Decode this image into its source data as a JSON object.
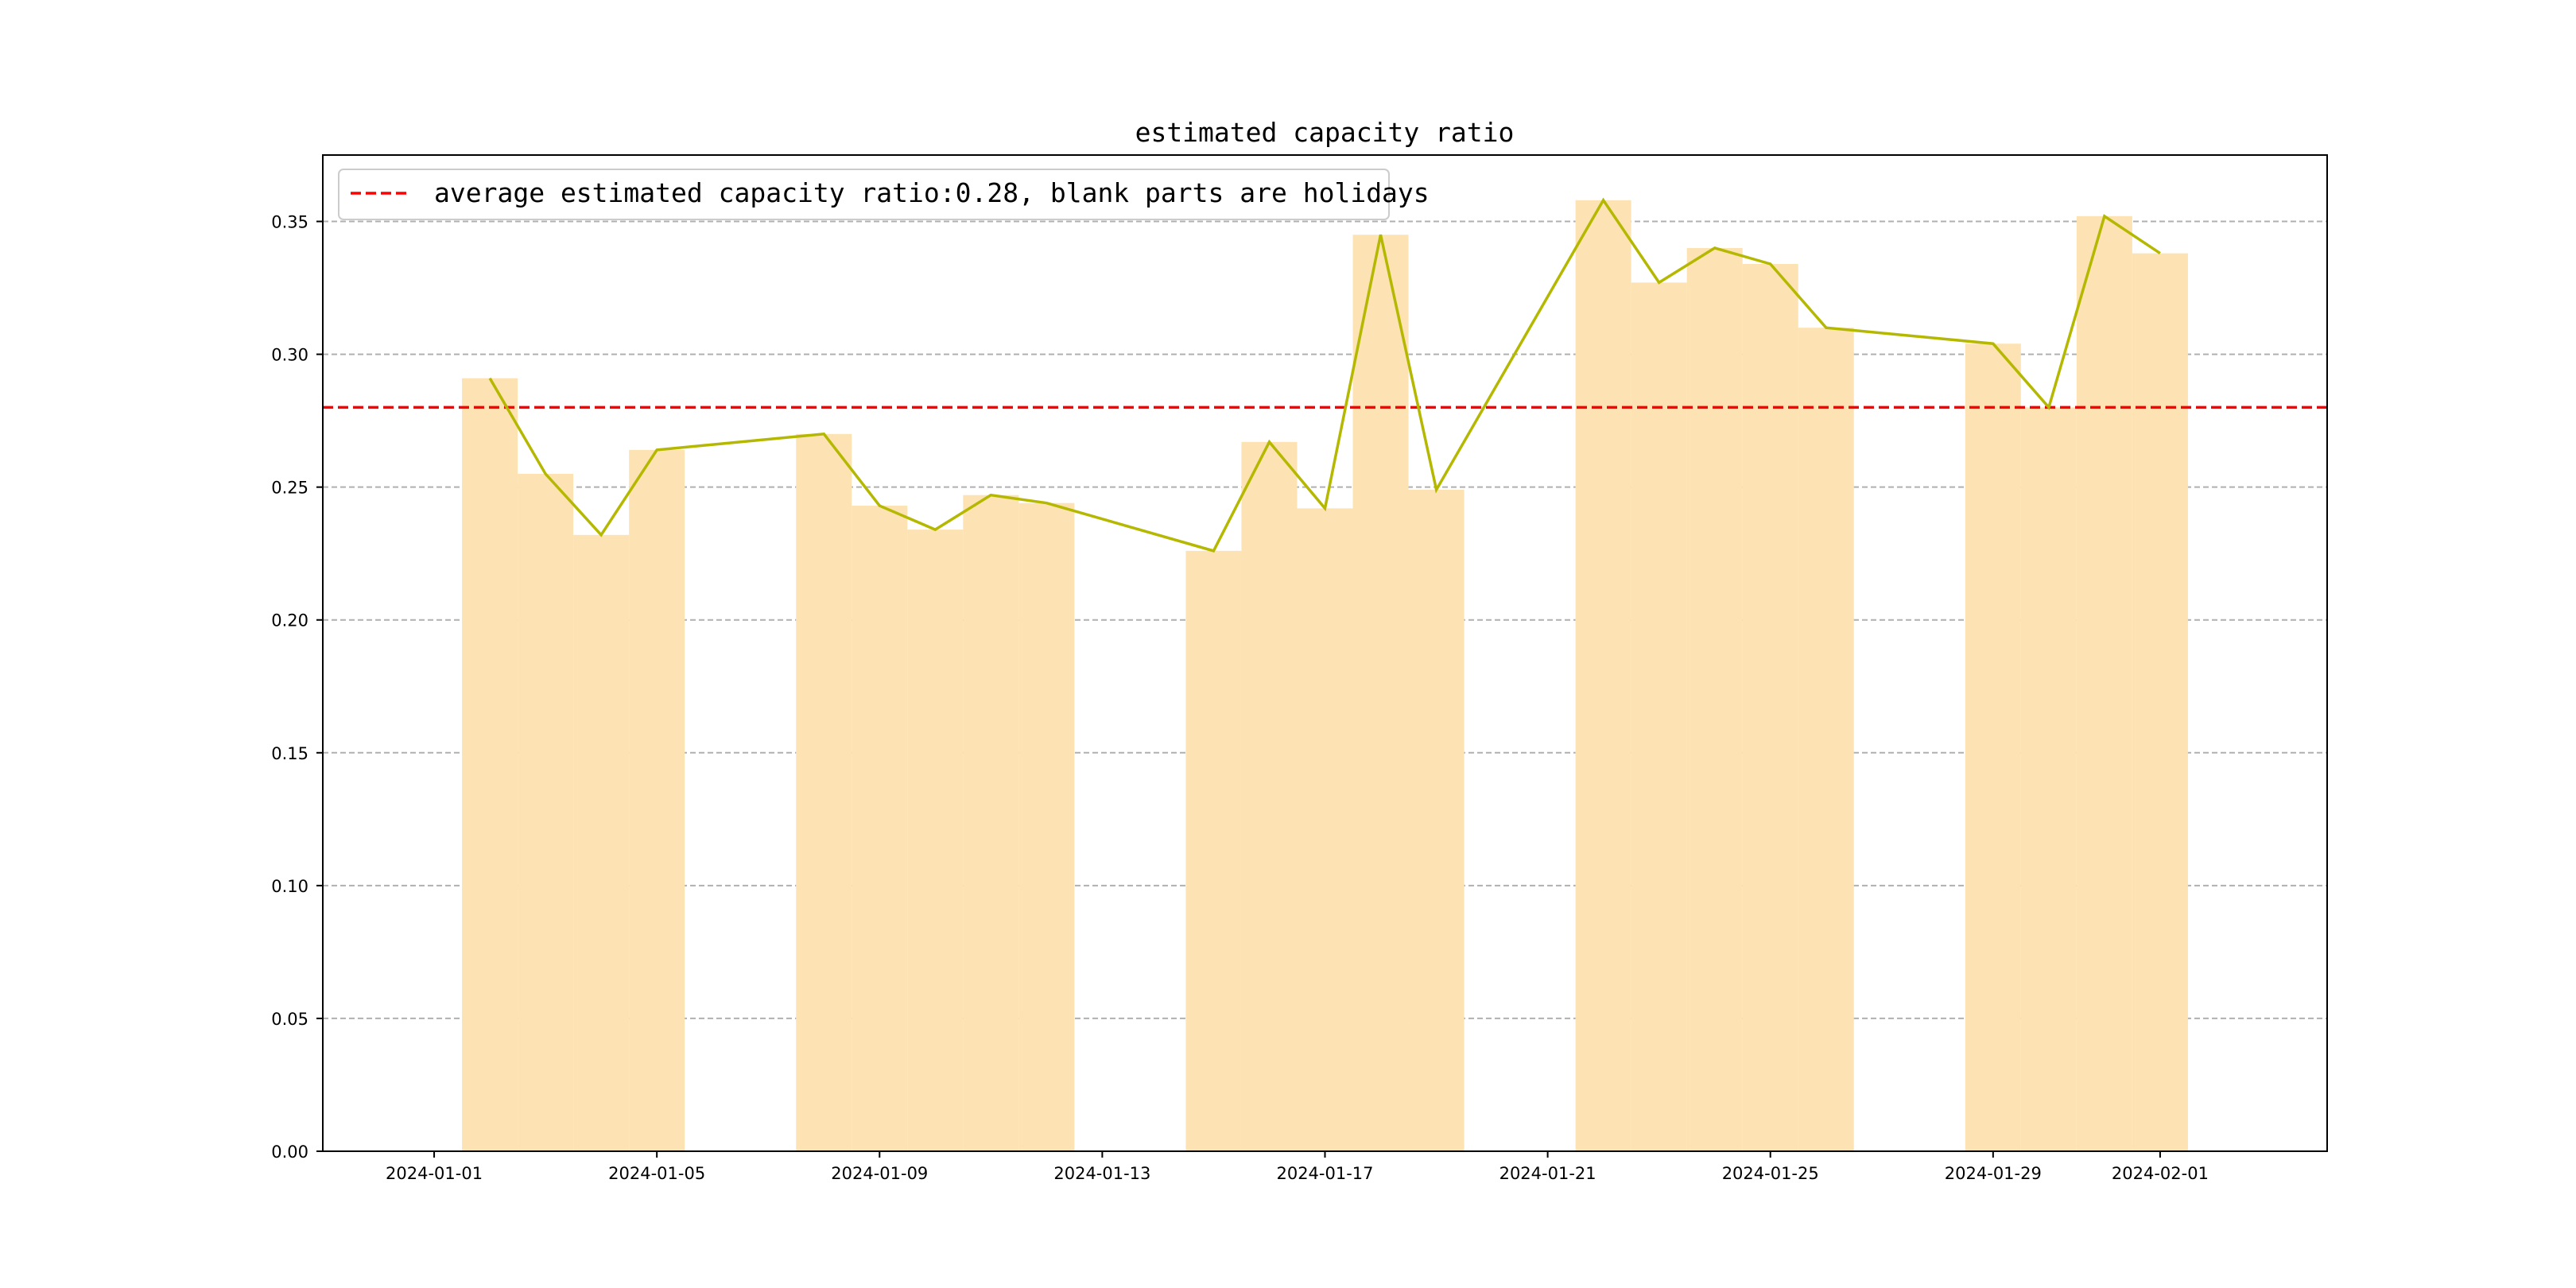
{
  "chart_data": {
    "type": "bar",
    "title": "estimated capacity ratio",
    "xlabel": "",
    "ylabel": "",
    "ylim": [
      0,
      0.375
    ],
    "xlim": [
      "2023-12-30",
      "2024-02-04"
    ],
    "grid": {
      "y": true,
      "x": false,
      "style": "dashed"
    },
    "legend_position": "top-left",
    "colors": {
      "bar": "#fde3b3",
      "line": "#b5b800",
      "average": "#ff0000",
      "grid": "#b0b0b0"
    },
    "x_ticks": [
      "2024-01-01",
      "2024-01-05",
      "2024-01-09",
      "2024-01-13",
      "2024-01-17",
      "2024-01-21",
      "2024-01-25",
      "2024-01-29",
      "2024-02-01"
    ],
    "y_ticks": [
      "0.00",
      "0.05",
      "0.10",
      "0.15",
      "0.20",
      "0.25",
      "0.30",
      "0.35"
    ],
    "dates": [
      "2024-01-02",
      "2024-01-03",
      "2024-01-04",
      "2024-01-05",
      "2024-01-08",
      "2024-01-09",
      "2024-01-10",
      "2024-01-11",
      "2024-01-12",
      "2024-01-15",
      "2024-01-16",
      "2024-01-17",
      "2024-01-18",
      "2024-01-19",
      "2024-01-22",
      "2024-01-23",
      "2024-01-24",
      "2024-01-25",
      "2024-01-26",
      "2024-01-29",
      "2024-01-30",
      "2024-01-31",
      "2024-02-01"
    ],
    "series": [
      {
        "type": "bar",
        "values": [
          0.291,
          0.255,
          0.232,
          0.264,
          0.27,
          0.243,
          0.234,
          0.247,
          0.244,
          0.226,
          0.267,
          0.242,
          0.345,
          0.249,
          0.358,
          0.327,
          0.34,
          0.334,
          0.31,
          0.304,
          0.28,
          0.352,
          0.338
        ]
      },
      {
        "type": "line",
        "values": [
          0.291,
          0.255,
          0.232,
          0.264,
          0.27,
          0.243,
          0.234,
          0.247,
          0.244,
          0.226,
          0.267,
          0.242,
          0.345,
          0.249,
          0.358,
          0.327,
          0.34,
          0.334,
          0.31,
          0.304,
          0.28,
          0.352,
          0.338
        ]
      }
    ],
    "average": {
      "value": 0.28,
      "label": "average estimated capacity ratio:0.28, blank parts are holidays"
    }
  }
}
